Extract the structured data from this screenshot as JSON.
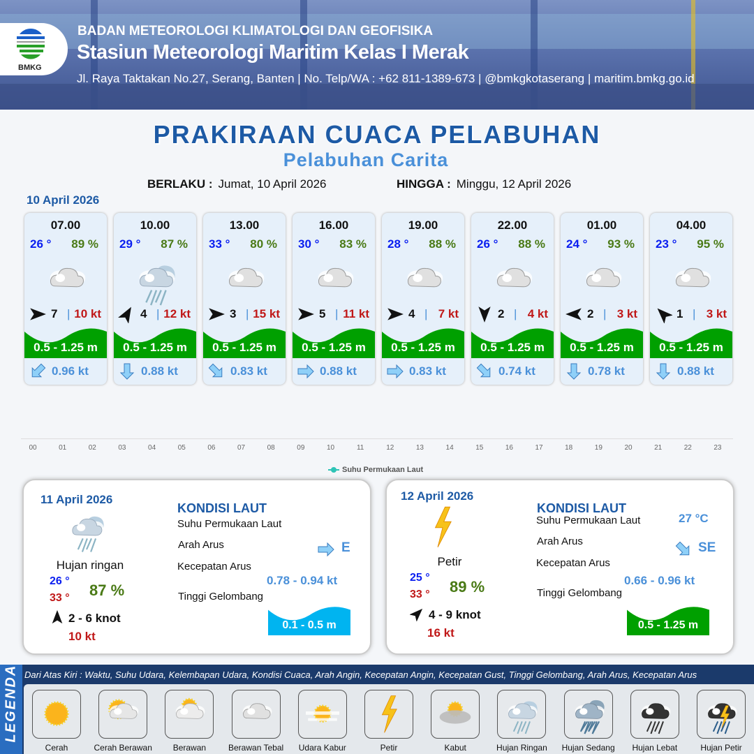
{
  "header": {
    "agency": "BADAN METEOROLOGI KLIMATOLOGI DAN GEOFISIKA",
    "station": "Stasiun Meteorologi Maritim Kelas I Merak",
    "contact": "Jl. Raya Taktakan No.27, Serang, Banten | No. Telp/WA : +62 811-1389-673 | @bmkgkotaserang | maritim.bmkg.go.id",
    "logo_text": "BMKG"
  },
  "title": "PRAKIRAAN CUACA PELABUHAN",
  "subtitle": "Pelabuhan Carita",
  "validity": {
    "from_label": "BERLAKU :",
    "from": "Jumat, 10 April 2026",
    "to_label": "HINGGA :",
    "to": "Minggu, 12 April 2026"
  },
  "day1_label": "10 April 2026",
  "colors": {
    "temp": "#0a1ef0",
    "humidity": "#4a7a16",
    "gust": "#c01818",
    "current": "#4a90d9",
    "wave_moderate": "#00a000",
    "wave_low": "#00b4f0"
  },
  "hourly": [
    {
      "time": "07.00",
      "temp": "26 °",
      "hum": "89 %",
      "icon": "berawan-tebal",
      "wind_dir_deg": 90,
      "wind": "7",
      "gust": "10 kt",
      "wave": "0.5 - 1.25 m",
      "cur_dir_deg": 225,
      "cur": "0.96 kt"
    },
    {
      "time": "10.00",
      "temp": "29 °",
      "hum": "87 %",
      "icon": "hujan-ringan",
      "wind_dir_deg": 30,
      "wind": "4",
      "gust": "12 kt",
      "wave": "0.5 - 1.25 m",
      "cur_dir_deg": 180,
      "cur": "0.88 kt"
    },
    {
      "time": "13.00",
      "temp": "33 °",
      "hum": "80 %",
      "icon": "berawan-tebal",
      "wind_dir_deg": 90,
      "wind": "3",
      "gust": "15 kt",
      "wave": "0.5 - 1.25 m",
      "cur_dir_deg": 135,
      "cur": "0.83 kt"
    },
    {
      "time": "16.00",
      "temp": "30 °",
      "hum": "83 %",
      "icon": "berawan-tebal",
      "wind_dir_deg": 90,
      "wind": "5",
      "gust": "11 kt",
      "wave": "0.5 - 1.25 m",
      "cur_dir_deg": 90,
      "cur": "0.88 kt"
    },
    {
      "time": "19.00",
      "temp": "28 °",
      "hum": "88 %",
      "icon": "berawan-tebal",
      "wind_dir_deg": 90,
      "wind": "4",
      "gust": "7 kt",
      "wave": "0.5 - 1.25 m",
      "cur_dir_deg": 90,
      "cur": "0.83 kt"
    },
    {
      "time": "22.00",
      "temp": "26 °",
      "hum": "88 %",
      "icon": "berawan-tebal",
      "wind_dir_deg": 180,
      "wind": "2",
      "gust": "4 kt",
      "wave": "0.5 - 1.25 m",
      "cur_dir_deg": 135,
      "cur": "0.74 kt"
    },
    {
      "time": "01.00",
      "temp": "24 °",
      "hum": "93 %",
      "icon": "berawan-tebal",
      "wind_dir_deg": 270,
      "wind": "2",
      "gust": "3 kt",
      "wave": "0.5 - 1.25 m",
      "cur_dir_deg": 180,
      "cur": "0.78 kt"
    },
    {
      "time": "04.00",
      "temp": "23 °",
      "hum": "95 %",
      "icon": "berawan-tebal",
      "wind_dir_deg": 315,
      "wind": "1",
      "gust": "3 kt",
      "wave": "0.5 - 1.25 m",
      "cur_dir_deg": 180,
      "cur": "0.88 kt"
    }
  ],
  "sst_chart": {
    "x_ticks": [
      "00",
      "01",
      "02",
      "03",
      "04",
      "05",
      "06",
      "07",
      "08",
      "09",
      "10",
      "11",
      "12",
      "13",
      "14",
      "15",
      "16",
      "17",
      "18",
      "19",
      "20",
      "21",
      "22",
      "23"
    ],
    "legend": "Suhu Permukaan Laut"
  },
  "days": [
    {
      "date": "11 April 2026",
      "icon": "hujan-ringan",
      "condition": "Hujan ringan",
      "tmin": "26 °",
      "tmax": "33 °",
      "hum": "87 %",
      "wind_dir_deg": 0,
      "wind": "2  - 6 knot",
      "gust": "10 kt",
      "kondisi_title": "KONDISI LAUT",
      "sst_label": "Suhu Permukaan Laut",
      "sst": "",
      "cur_dir_label": "Arah Arus",
      "cur_dir": "E",
      "cur_dir_deg": 90,
      "cur_speed_label": "Kecepatan Arus",
      "cur_speed": "0.78 - 0.94 kt",
      "wave_label": "Tinggi Gelombang",
      "wave": "0.1 - 0.5 m",
      "wave_color": "#00b4f0"
    },
    {
      "date": "12 April 2026",
      "icon": "petir",
      "condition": "Petir",
      "tmin": "25 °",
      "tmax": "33 °",
      "hum": "89 %",
      "wind_dir_deg": 45,
      "wind": "4  - 9 knot",
      "gust": "16 kt",
      "kondisi_title": "KONDISI LAUT",
      "sst_label": "Suhu Permukaan Laut",
      "sst": "27 °C",
      "cur_dir_label": "Arah Arus",
      "cur_dir": "SE",
      "cur_dir_deg": 135,
      "cur_speed_label": "Kecepatan Arus",
      "cur_speed": "0.66  - 0.96 kt",
      "wave_label": "Tinggi Gelombang",
      "wave": "0.5 - 1.25 m",
      "wave_color": "#00a000"
    }
  ],
  "legend": {
    "title": "LEGENDA",
    "description": "Dari Atas Kiri : Waktu, Suhu Udara, Kelembapan Udara, Kondisi Cuaca, Arah Angin, Kecepatan Angin, Kecepatan Gust, Tinggi Gelombang, Arah Arus, Kecepatan Arus",
    "items": [
      {
        "label": "Cerah",
        "icon": "cerah"
      },
      {
        "label": "Cerah Berawan",
        "icon": "cerah-berawan"
      },
      {
        "label": "Berawan",
        "icon": "berawan"
      },
      {
        "label": "Berawan Tebal",
        "icon": "berawan-tebal"
      },
      {
        "label": "Udara Kabur",
        "icon": "udara-kabur"
      },
      {
        "label": "Petir",
        "icon": "petir"
      },
      {
        "label": "Kabut",
        "icon": "kabut"
      },
      {
        "label": "Hujan Ringan",
        "icon": "hujan-ringan"
      },
      {
        "label": "Hujan Sedang",
        "icon": "hujan-sedang"
      },
      {
        "label": "Hujan Lebat",
        "icon": "hujan-lebat"
      },
      {
        "label": "Hujan Petir",
        "icon": "hujan-petir"
      }
    ]
  }
}
